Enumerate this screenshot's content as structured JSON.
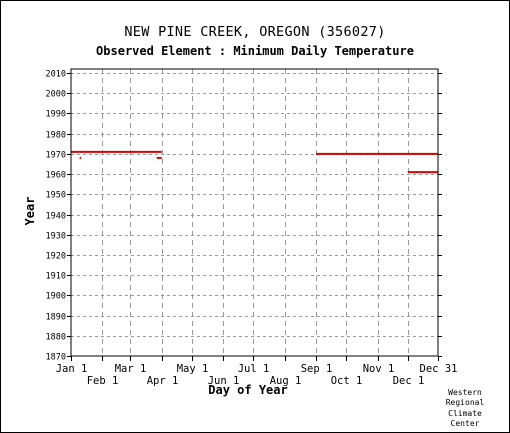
{
  "chart_data": {
    "type": "line",
    "title": "NEW PINE CREEK, OREGON    (356027)",
    "subtitle": "Observed Element : Minimum Daily Temperature",
    "xlabel": "Day of Year",
    "ylabel": "Year",
    "xlim": [
      1,
      365
    ],
    "ylim": [
      1870,
      2012
    ],
    "x_ticks": [
      {
        "label": "Jan 1",
        "day": 1,
        "row": "upper"
      },
      {
        "label": "Feb 1",
        "day": 32,
        "row": "lower"
      },
      {
        "label": "Mar 1",
        "day": 60,
        "row": "upper"
      },
      {
        "label": "Apr 1",
        "day": 91,
        "row": "lower"
      },
      {
        "label": "May 1",
        "day": 121,
        "row": "upper"
      },
      {
        "label": "Jun 1",
        "day": 152,
        "row": "lower"
      },
      {
        "label": "Jul 1",
        "day": 182,
        "row": "upper"
      },
      {
        "label": "Aug 1",
        "day": 213,
        "row": "lower"
      },
      {
        "label": "Sep 1",
        "day": 244,
        "row": "upper"
      },
      {
        "label": "Oct 1",
        "day": 274,
        "row": "lower"
      },
      {
        "label": "Nov 1",
        "day": 305,
        "row": "upper"
      },
      {
        "label": "Dec 1",
        "day": 335,
        "row": "lower"
      },
      {
        "label": "Dec 31",
        "day": 365,
        "row": "upper"
      }
    ],
    "y_ticks": [
      1870,
      1880,
      1890,
      1900,
      1910,
      1920,
      1930,
      1940,
      1950,
      1960,
      1970,
      1980,
      1990,
      2000,
      2010
    ],
    "grid": true,
    "series_color": "#dd0000",
    "segments": [
      {
        "year": 1971,
        "start_day": 1,
        "end_day": 91
      },
      {
        "year": 1968,
        "start_day": 86,
        "end_day": 91
      },
      {
        "year": 1970,
        "start_day": 244,
        "end_day": 365
      },
      {
        "year": 1961,
        "start_day": 335,
        "end_day": 365
      }
    ],
    "points": [
      {
        "year": 1968,
        "day": 10
      }
    ]
  },
  "credit": {
    "line1": "Western",
    "line2": "Regional",
    "line3": "Climate",
    "line4": "Center"
  }
}
